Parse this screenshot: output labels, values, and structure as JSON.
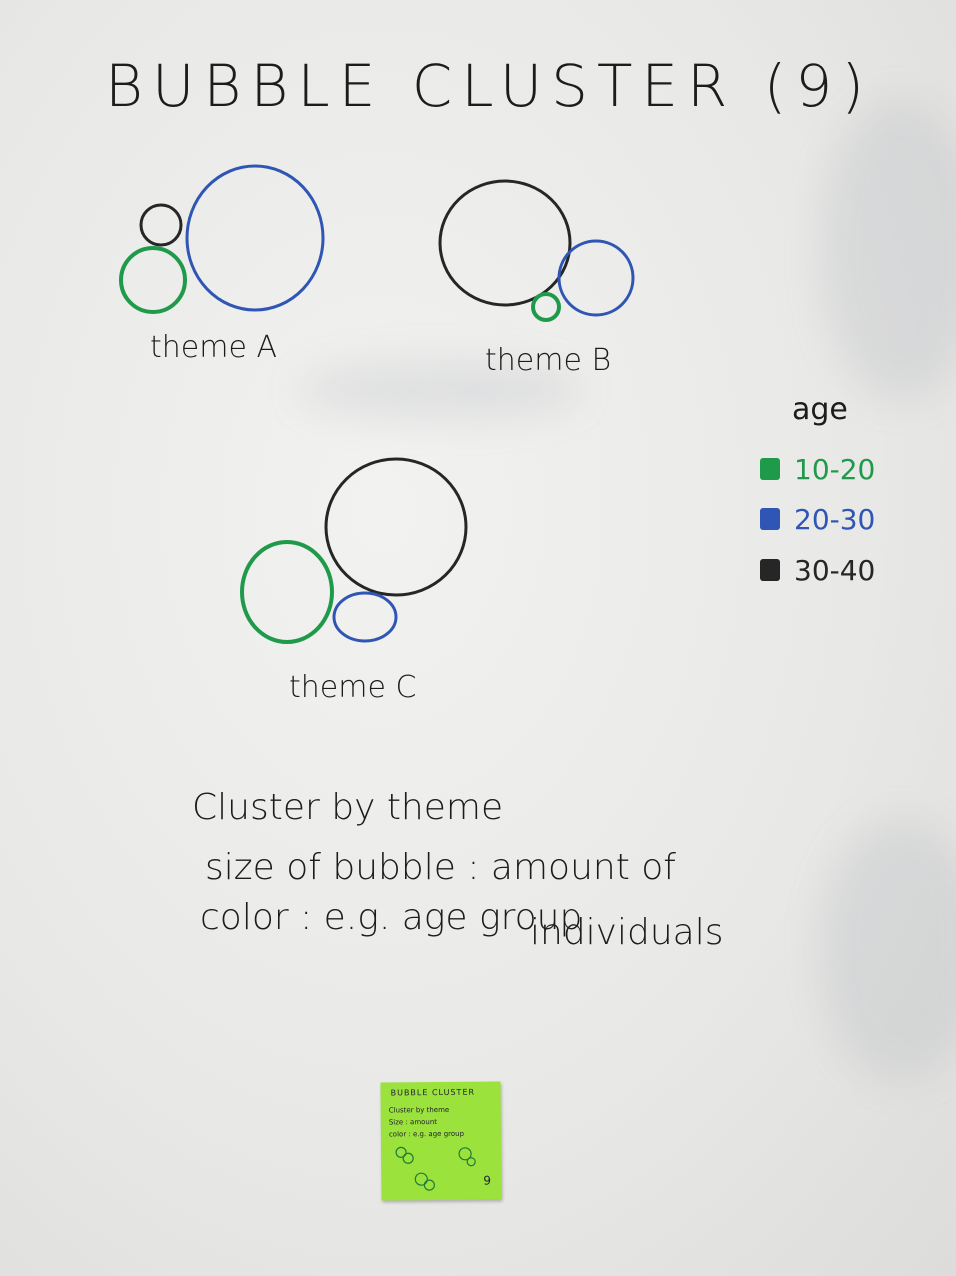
{
  "title": "BUBBLE CLUSTER (9)",
  "themes": [
    {
      "label": "theme A"
    },
    {
      "label": "theme B"
    },
    {
      "label": "theme C"
    }
  ],
  "legend": {
    "title": "age",
    "items": [
      {
        "label": "10-20",
        "color": "#1f9a4a"
      },
      {
        "label": "20-30",
        "color": "#2f56b4"
      },
      {
        "label": "30-40",
        "color": "#262626"
      }
    ]
  },
  "notes": {
    "line1": "Cluster by theme",
    "line2": "size of bubble : amount of",
    "line3": "individuals",
    "line4": "color : e.g. age group"
  },
  "sticky_note": {
    "title": "BUBBLE CLUSTER",
    "line1": "Cluster by theme",
    "line2": "Size : amount",
    "line3": "color : e.g. age group",
    "page": "9"
  }
}
